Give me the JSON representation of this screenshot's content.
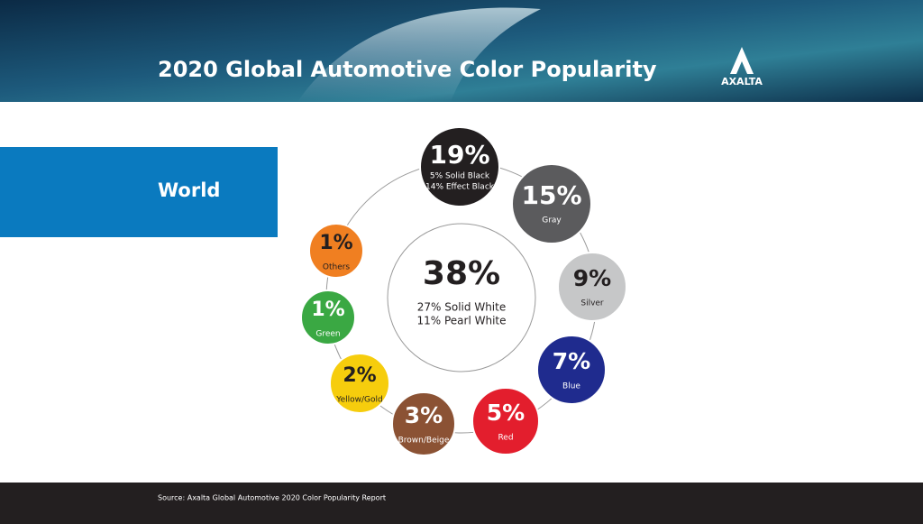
{
  "header": {
    "title": "2020 Global Automotive Color Popularity",
    "logo": "AXALTA"
  },
  "region": "World",
  "center": {
    "value": "38%",
    "details": [
      "27% Solid White",
      "11% Pearl White"
    ]
  },
  "colors": [
    {
      "value": "19%",
      "details": [
        "5% Solid Black",
        "14% Effect Black"
      ]
    },
    {
      "value": "15%",
      "details": [
        "Gray"
      ]
    },
    {
      "value": "9%",
      "details": [
        "Silver"
      ]
    },
    {
      "value": "7%",
      "details": [
        "Blue"
      ]
    },
    {
      "value": "5%",
      "details": [
        "Red"
      ]
    },
    {
      "value": "3%",
      "details": [
        "Brown/Beige"
      ]
    },
    {
      "value": "2%",
      "details": [
        "Yellow/Gold"
      ]
    },
    {
      "value": "1%",
      "details": [
        "Green"
      ]
    },
    {
      "value": "1%",
      "details": [
        "Others"
      ]
    }
  ],
  "footer": {
    "source": "Source: Axalta Global Automotive 2020 Color Popularity Report"
  }
}
